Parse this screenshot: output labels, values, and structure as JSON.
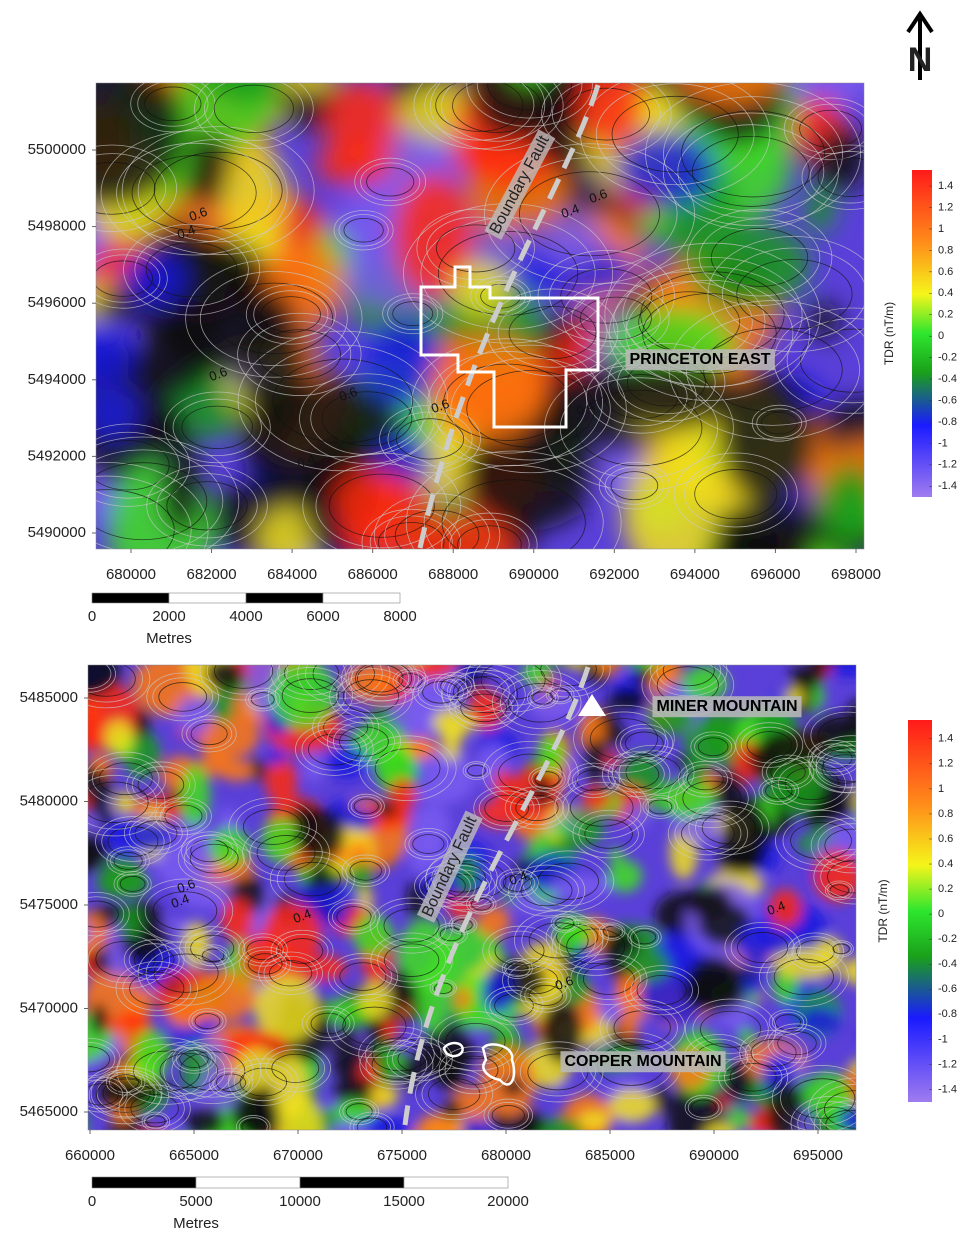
{
  "north_arrow": "N",
  "panels": [
    {
      "xlim": [
        679131,
        698199
      ],
      "ylim": [
        5489582,
        5501749
      ],
      "xticks": [
        680000,
        682000,
        684000,
        686000,
        688000,
        690000,
        692000,
        694000,
        696000,
        698000
      ],
      "yticks": [
        5490000,
        5492000,
        5494000,
        5496000,
        5498000,
        5500000
      ],
      "colorbar": {
        "label": "TDR (nT/m)",
        "lim": [
          -1.5,
          1.55
        ],
        "ticks": [
          1.4,
          1.2,
          1,
          0.8,
          0.6,
          0.4,
          0.2,
          0,
          -0.2,
          -0.4,
          -0.6,
          -0.8,
          -1,
          -1.2,
          -1.4
        ]
      },
      "scale_bar": {
        "ticks": [
          0,
          2000,
          4000,
          6000,
          8000
        ],
        "label": "Metres"
      },
      "annotations": {
        "fault": "Boundary Fault",
        "sites": [
          "PRINCETON EAST"
        ]
      },
      "contour_labels": [
        0.6,
        0.4,
        0.6,
        0.6,
        0.4,
        0.4,
        0.6,
        0.4,
        0.6
      ]
    },
    {
      "xlim": [
        659904,
        696827
      ],
      "ylim": [
        5464130,
        5486594
      ],
      "xticks": [
        660000,
        665000,
        670000,
        675000,
        680000,
        685000,
        690000,
        695000
      ],
      "yticks": [
        5465000,
        5470000,
        5475000,
        5480000,
        5485000
      ],
      "colorbar": {
        "label": "TDR (nT/m)",
        "lim": [
          -1.5,
          1.55
        ],
        "ticks": [
          1.4,
          1.2,
          1,
          0.8,
          0.6,
          0.4,
          0.2,
          0,
          -0.2,
          -0.4,
          -0.6,
          -0.8,
          -1,
          -1.2,
          -1.4
        ]
      },
      "scale_bar": {
        "ticks": [
          0,
          5000,
          10000,
          15000,
          20000
        ],
        "label": "Metres"
      },
      "annotations": {
        "fault": "Boundary Fault",
        "sites": [
          "MINER MOUNTAIN",
          "COPPER MOUNTAIN"
        ]
      },
      "contour_labels": [
        0.6,
        0.4,
        0.4,
        0.4,
        0.6,
        0.4
      ]
    }
  ]
}
